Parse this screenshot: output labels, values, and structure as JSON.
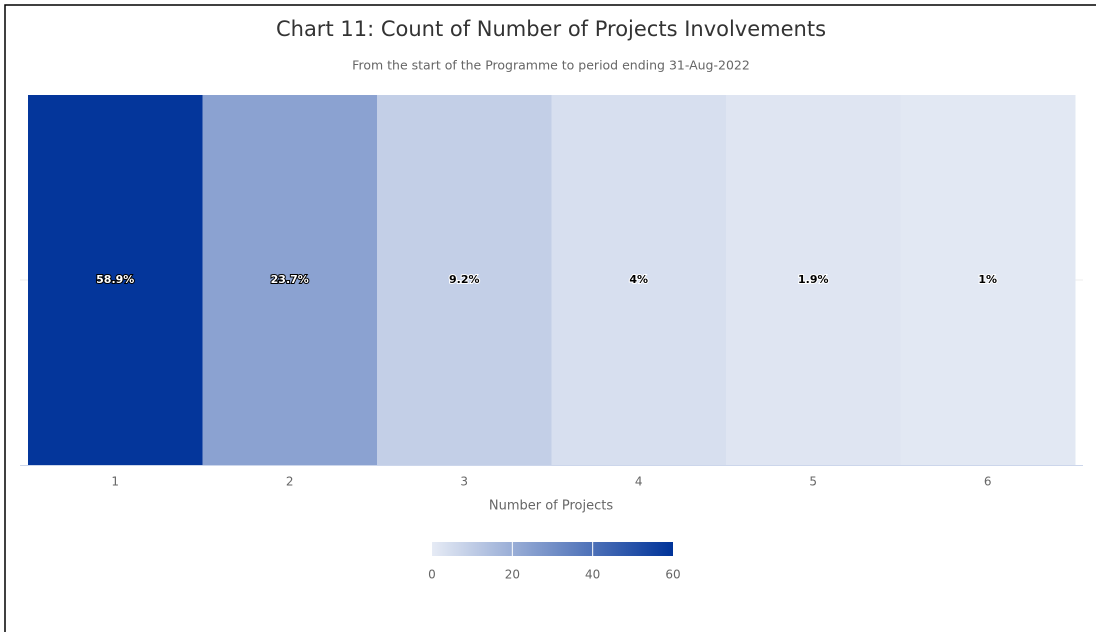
{
  "chart_data": {
    "type": "heatmap",
    "title": "Chart 11: Count of Number of Projects Involvements",
    "subtitle": "From the start of the Programme to period ending 31-Aug-2022",
    "x_label": "Number of Projects",
    "categories": [
      "1",
      "2",
      "3",
      "4",
      "5",
      "6"
    ],
    "values": [
      58.9,
      23.7,
      9.2,
      4,
      1.9,
      1
    ],
    "value_labels": [
      "58.9%",
      "23.7%",
      "9.2%",
      "4%",
      "1.9%",
      "1%"
    ],
    "colorlim": [
      0,
      60
    ],
    "colorticks": [
      0,
      20,
      40,
      60
    ],
    "min_color": "#e6ebf5",
    "max_color": "#003399"
  }
}
